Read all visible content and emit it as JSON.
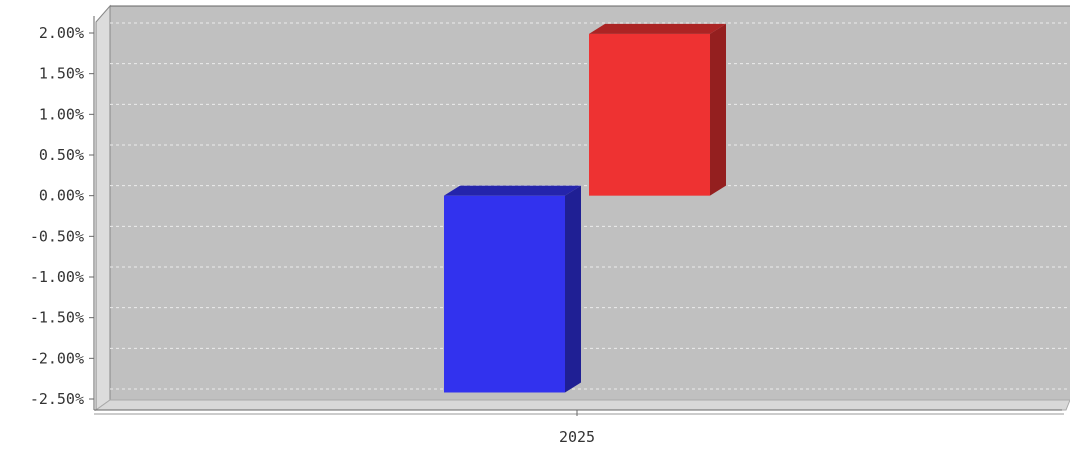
{
  "chart_data": {
    "type": "bar",
    "title": "",
    "xlabel": "",
    "ylabel": "",
    "categories": [
      "2025"
    ],
    "series": [
      {
        "values": [
          -2.42
        ],
        "color": "#3232EE"
      },
      {
        "values": [
          1.99
        ],
        "color": "#EE3232"
      }
    ],
    "ylim": [
      -2.5,
      2.0
    ],
    "y_ticks": [
      2.0,
      1.5,
      1.0,
      0.5,
      0.0,
      -0.5,
      -1.0,
      -1.5,
      -2.0,
      -2.5
    ],
    "y_tick_labels": [
      "2.00%",
      "1.50%",
      "1.00%",
      "0.50%",
      "0.00%",
      "-0.50%",
      "-1.00%",
      "-1.50%",
      "-2.00%",
      "-2.50%"
    ],
    "grid": true,
    "style": "3d",
    "background_color": "#C0C0C0"
  }
}
